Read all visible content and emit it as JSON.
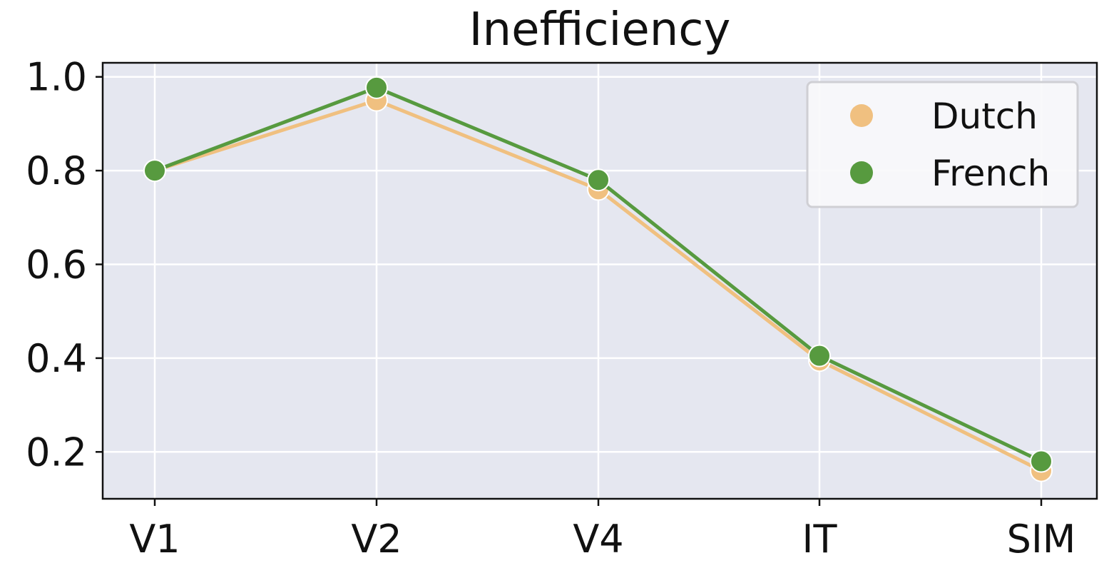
{
  "chart_data": {
    "type": "line",
    "title": "Inefficiency",
    "xlabel": "",
    "ylabel": "",
    "categories": [
      "V1",
      "V2",
      "V4",
      "IT",
      "SIM"
    ],
    "ylim": [
      0.1,
      1.03
    ],
    "yticks": [
      "0.2",
      "0.4",
      "0.6",
      "0.8",
      "1.0"
    ],
    "ytick_values": [
      0.2,
      0.4,
      0.6,
      0.8,
      1.0
    ],
    "grid": true,
    "legend_position": "top-right",
    "series": [
      {
        "name": "Dutch",
        "color": "#F0C080",
        "values": [
          0.8,
          0.95,
          0.76,
          0.395,
          0.16
        ],
        "line_segment_count": 4
      },
      {
        "name": "French",
        "color": "#579A3F",
        "values": [
          0.8,
          0.977,
          0.78,
          0.405,
          0.18
        ],
        "line_segment_count": 4
      }
    ]
  }
}
